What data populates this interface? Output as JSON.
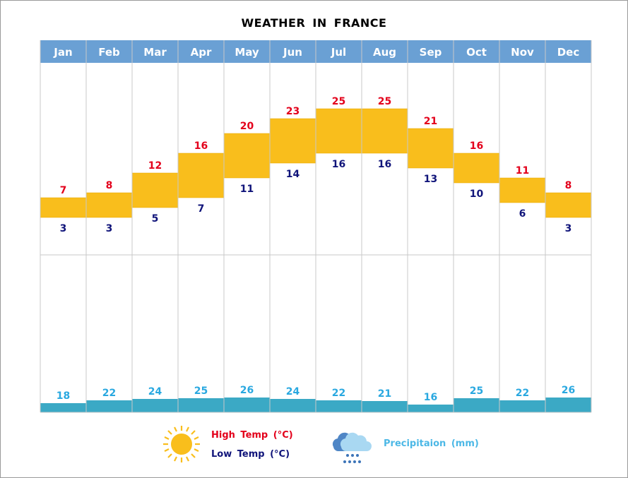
{
  "chart_data": {
    "type": "bar",
    "title": "WEATHER IN FRANCE",
    "categories": [
      "Jan",
      "Feb",
      "Mar",
      "Apr",
      "May",
      "Jun",
      "Jul",
      "Aug",
      "Sep",
      "Oct",
      "Nov",
      "Dec"
    ],
    "series": [
      {
        "name": "High Temp (°C)",
        "values": [
          7,
          8,
          12,
          16,
          20,
          23,
          25,
          25,
          21,
          16,
          11,
          8
        ],
        "color": "#e3001b"
      },
      {
        "name": "Low Temp (°C)",
        "values": [
          3,
          3,
          5,
          7,
          11,
          14,
          16,
          16,
          13,
          10,
          6,
          3
        ],
        "color": "#10147a"
      },
      {
        "name": "Precipitaion (mm)",
        "values": [
          18,
          22,
          24,
          25,
          26,
          24,
          22,
          21,
          16,
          25,
          22,
          26
        ],
        "color": "#29a8e0"
      }
    ],
    "legend": {
      "high": "High Temp (°C)",
      "low": "Low Temp (°C)",
      "precip": "Precipitaion (mm)",
      "placement": "bottom"
    },
    "colors": {
      "header": "#6aa0d4",
      "range_bar": "#f9be1c",
      "precip_bar": "#3ba9c5"
    }
  }
}
